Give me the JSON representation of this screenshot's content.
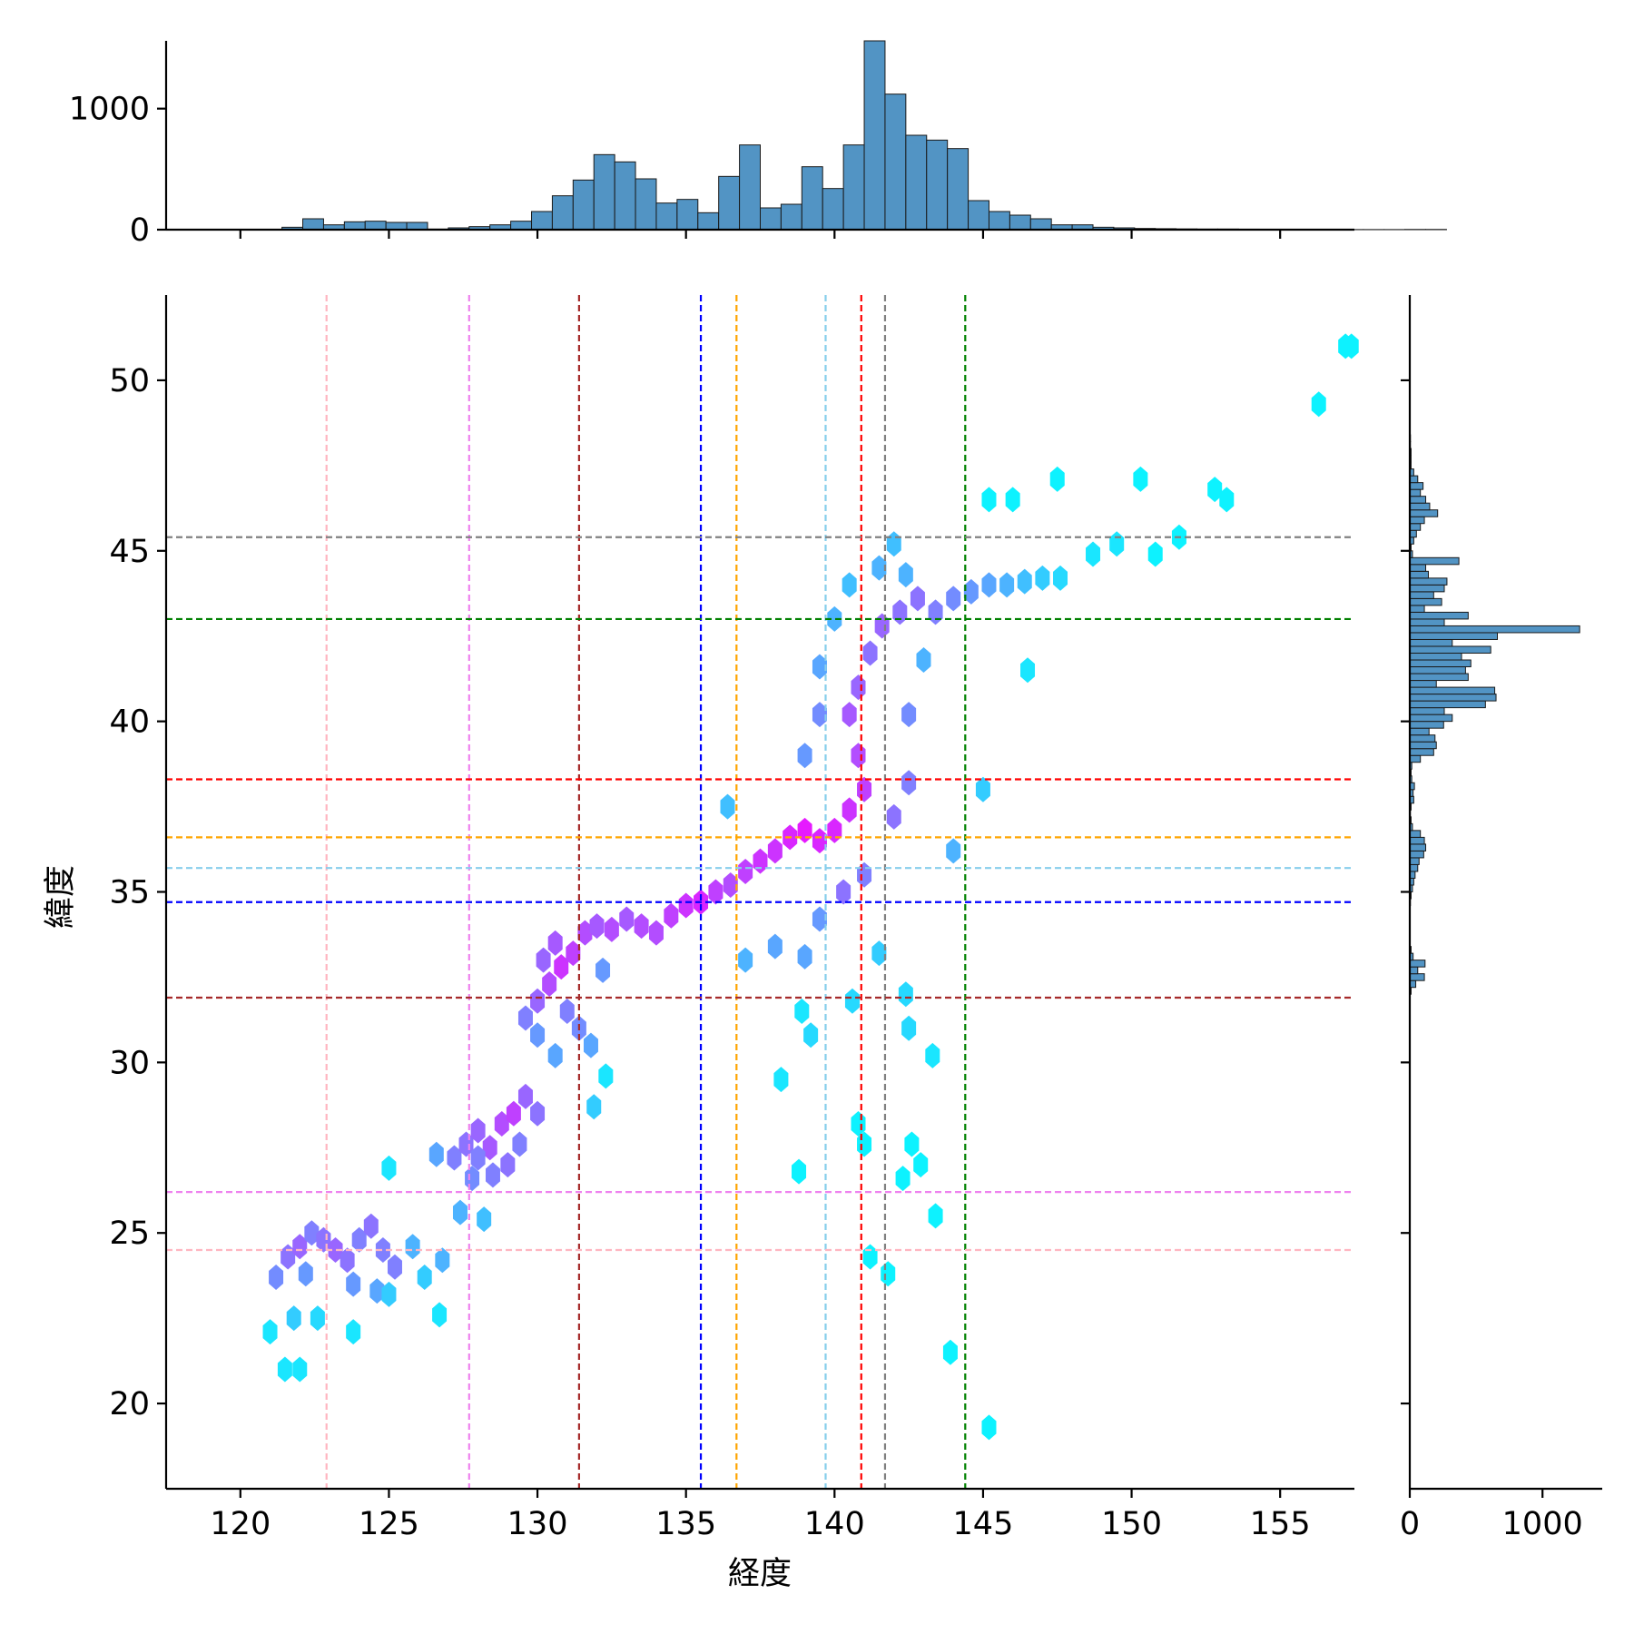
{
  "chart_data": {
    "type": "hexbin_joint",
    "xlabel": "経度",
    "ylabel": "緯度",
    "xlim": [
      117.5,
      157.5
    ],
    "ylim": [
      17.5,
      52.5
    ],
    "x_ticks": [
      120,
      125,
      130,
      135,
      140,
      145,
      150,
      155
    ],
    "y_ticks": [
      20,
      25,
      30,
      35,
      40,
      45,
      50
    ],
    "top_hist": {
      "ticks": [
        0,
        1000
      ],
      "ylim": [
        0,
        1560
      ],
      "bin_start": 120.0,
      "bin_width": 0.7,
      "counts": [
        0,
        0,
        20,
        90,
        40,
        65,
        70,
        60,
        60,
        5,
        15,
        25,
        40,
        70,
        150,
        280,
        410,
        620,
        560,
        420,
        220,
        250,
        140,
        440,
        700,
        180,
        210,
        520,
        340,
        700,
        1560,
        1120,
        780,
        740,
        670,
        240,
        150,
        120,
        90,
        40,
        40,
        20,
        15,
        10,
        8,
        6,
        5,
        5,
        4,
        3,
        2,
        3,
        2,
        1,
        1,
        1,
        2,
        2
      ]
    },
    "right_hist": {
      "ticks": [
        0,
        1000
      ],
      "xlim": [
        0,
        1450
      ],
      "bin_start": 20.0,
      "bin_width": 0.2,
      "counts": [
        0,
        0,
        0,
        0,
        0,
        0,
        0,
        0,
        0,
        0,
        0,
        0,
        0,
        0,
        0,
        0,
        0,
        0,
        0,
        0,
        0,
        0,
        0,
        0,
        0,
        0,
        0,
        0,
        0,
        0,
        0,
        0,
        0,
        0,
        0,
        0,
        0,
        0,
        0,
        0,
        0,
        0,
        0,
        0,
        0,
        0,
        0,
        0,
        0,
        0,
        0,
        0,
        0,
        0,
        0,
        0,
        0,
        0,
        0,
        0,
        10,
        45,
        110,
        60,
        115,
        25,
        10,
        0,
        0,
        0,
        0,
        0,
        0,
        5,
        10,
        20,
        30,
        40,
        60,
        70,
        105,
        120,
        110,
        80,
        20,
        10,
        5,
        10,
        30,
        25,
        35,
        15,
        10,
        15,
        80,
        180,
        200,
        190,
        145,
        255,
        320,
        260,
        570,
        650,
        640,
        200,
        440,
        420,
        460,
        390,
        610,
        320,
        660,
        1280,
        260,
        440,
        110,
        240,
        180,
        260,
        280,
        140,
        120,
        370,
        20,
        10,
        30,
        50,
        80,
        110,
        210,
        150,
        120,
        80,
        100,
        60,
        30,
        10,
        10,
        10,
        5,
        5
      ]
    },
    "hexbins": {
      "gridsize_note": "hex centers in data units with intensity 0-1",
      "points": [
        [
          121.2,
          23.7,
          0.45
        ],
        [
          121.6,
          24.3,
          0.55
        ],
        [
          122.0,
          24.6,
          0.6
        ],
        [
          122.4,
          25.0,
          0.5
        ],
        [
          122.8,
          24.8,
          0.55
        ],
        [
          123.2,
          24.5,
          0.6
        ],
        [
          123.6,
          24.2,
          0.55
        ],
        [
          124.0,
          24.8,
          0.5
        ],
        [
          124.4,
          25.2,
          0.55
        ],
        [
          124.8,
          24.5,
          0.5
        ],
        [
          125.2,
          24.0,
          0.5
        ],
        [
          123.8,
          23.5,
          0.4
        ],
        [
          124.6,
          23.3,
          0.35
        ],
        [
          122.2,
          23.8,
          0.4
        ],
        [
          121.8,
          22.5,
          0.2
        ],
        [
          122.6,
          22.5,
          0.15
        ],
        [
          121.0,
          22.1,
          0.1
        ],
        [
          121.5,
          21.0,
          0.1
        ],
        [
          122.0,
          21.0,
          0.1
        ],
        [
          123.8,
          22.1,
          0.1
        ],
        [
          125.0,
          23.2,
          0.2
        ],
        [
          125.8,
          24.6,
          0.3
        ],
        [
          125.0,
          26.9,
          0.1
        ],
        [
          126.7,
          22.6,
          0.1
        ],
        [
          126.2,
          23.7,
          0.2
        ],
        [
          126.8,
          24.2,
          0.3
        ],
        [
          127.2,
          27.2,
          0.5
        ],
        [
          127.6,
          27.6,
          0.55
        ],
        [
          128.0,
          28.0,
          0.6
        ],
        [
          128.4,
          27.5,
          0.65
        ],
        [
          128.8,
          28.2,
          0.7
        ],
        [
          129.2,
          28.5,
          0.75
        ],
        [
          129.6,
          29.0,
          0.6
        ],
        [
          127.8,
          26.6,
          0.45
        ],
        [
          128.5,
          26.7,
          0.5
        ],
        [
          129.0,
          27.0,
          0.55
        ],
        [
          129.4,
          27.6,
          0.5
        ],
        [
          130.0,
          28.5,
          0.55
        ],
        [
          129.6,
          31.3,
          0.5
        ],
        [
          130.0,
          31.8,
          0.6
        ],
        [
          130.4,
          32.3,
          0.7
        ],
        [
          130.8,
          32.8,
          0.8
        ],
        [
          131.2,
          33.2,
          0.75
        ],
        [
          131.6,
          33.8,
          0.7
        ],
        [
          130.6,
          33.5,
          0.65
        ],
        [
          130.2,
          33.0,
          0.6
        ],
        [
          131.0,
          31.5,
          0.5
        ],
        [
          131.4,
          31.0,
          0.45
        ],
        [
          131.8,
          30.5,
          0.35
        ],
        [
          130.6,
          30.2,
          0.35
        ],
        [
          130.0,
          30.8,
          0.4
        ],
        [
          132.0,
          34.0,
          0.65
        ],
        [
          132.5,
          33.9,
          0.7
        ],
        [
          133.0,
          34.2,
          0.65
        ],
        [
          133.5,
          34.0,
          0.7
        ],
        [
          134.0,
          33.8,
          0.7
        ],
        [
          134.5,
          34.3,
          0.75
        ],
        [
          135.0,
          34.6,
          0.8
        ],
        [
          135.5,
          34.7,
          0.85
        ],
        [
          136.0,
          35.0,
          0.75
        ],
        [
          136.5,
          35.2,
          0.7
        ],
        [
          137.0,
          35.6,
          0.75
        ],
        [
          137.5,
          35.9,
          0.8
        ],
        [
          138.0,
          36.2,
          0.8
        ],
        [
          138.5,
          36.6,
          0.85
        ],
        [
          139.0,
          36.8,
          0.9
        ],
        [
          139.5,
          36.5,
          0.85
        ],
        [
          140.0,
          36.8,
          0.85
        ],
        [
          140.5,
          37.4,
          0.8
        ],
        [
          141.0,
          38.0,
          0.75
        ],
        [
          140.8,
          39.0,
          0.7
        ],
        [
          140.5,
          40.2,
          0.65
        ],
        [
          140.8,
          41.0,
          0.6
        ],
        [
          141.2,
          42.0,
          0.55
        ],
        [
          141.6,
          42.8,
          0.6
        ],
        [
          142.2,
          43.2,
          0.55
        ],
        [
          142.8,
          43.6,
          0.55
        ],
        [
          143.4,
          43.2,
          0.5
        ],
        [
          144.0,
          43.6,
          0.45
        ],
        [
          144.6,
          43.8,
          0.4
        ],
        [
          145.2,
          44.0,
          0.35
        ],
        [
          145.8,
          44.0,
          0.3
        ],
        [
          146.4,
          44.1,
          0.25
        ],
        [
          147.0,
          44.2,
          0.2
        ],
        [
          147.6,
          44.2,
          0.15
        ],
        [
          139.0,
          39.0,
          0.4
        ],
        [
          139.5,
          40.2,
          0.45
        ],
        [
          139.5,
          41.6,
          0.35
        ],
        [
          140.0,
          43.0,
          0.3
        ],
        [
          140.5,
          44.0,
          0.25
        ],
        [
          141.5,
          44.5,
          0.3
        ],
        [
          142.0,
          45.2,
          0.25
        ],
        [
          142.4,
          44.3,
          0.3
        ],
        [
          143.0,
          41.8,
          0.3
        ],
        [
          142.5,
          40.2,
          0.45
        ],
        [
          142.5,
          38.2,
          0.5
        ],
        [
          142.0,
          37.2,
          0.55
        ],
        [
          141.0,
          35.5,
          0.5
        ],
        [
          140.3,
          35.0,
          0.55
        ],
        [
          139.5,
          34.2,
          0.4
        ],
        [
          139.0,
          33.1,
          0.35
        ],
        [
          138.0,
          33.4,
          0.35
        ],
        [
          137.0,
          33.0,
          0.3
        ],
        [
          136.4,
          37.5,
          0.25
        ],
        [
          139.2,
          30.8,
          0.15
        ],
        [
          138.2,
          29.5,
          0.1
        ],
        [
          141.5,
          33.2,
          0.2
        ],
        [
          142.5,
          31.0,
          0.15
        ],
        [
          143.3,
          30.2,
          0.1
        ],
        [
          144.0,
          36.2,
          0.3
        ],
        [
          145.0,
          38.0,
          0.2
        ],
        [
          146.5,
          41.5,
          0.1
        ],
        [
          146.0,
          46.5,
          0.05
        ],
        [
          145.2,
          46.5,
          0.05
        ],
        [
          147.5,
          47.1,
          0.05
        ],
        [
          150.3,
          47.1,
          0.05
        ],
        [
          152.8,
          46.8,
          0.05
        ],
        [
          153.2,
          46.5,
          0.05
        ],
        [
          148.7,
          44.9,
          0.1
        ],
        [
          149.5,
          45.2,
          0.1
        ],
        [
          150.8,
          44.9,
          0.05
        ],
        [
          151.6,
          45.4,
          0.05
        ],
        [
          156.3,
          49.3,
          0.05
        ],
        [
          157.2,
          51.0,
          0.05
        ],
        [
          157.4,
          51.0,
          0.05
        ],
        [
          138.8,
          26.8,
          0.05
        ],
        [
          140.8,
          28.2,
          0.05
        ],
        [
          141.0,
          27.6,
          0.05
        ],
        [
          142.6,
          27.6,
          0.05
        ],
        [
          142.9,
          27.0,
          0.05
        ],
        [
          142.3,
          26.6,
          0.05
        ],
        [
          143.4,
          25.5,
          0.05
        ],
        [
          141.2,
          24.3,
          0.05
        ],
        [
          141.8,
          23.8,
          0.05
        ],
        [
          143.9,
          21.5,
          0.05
        ],
        [
          145.2,
          19.3,
          0.05
        ],
        [
          138.9,
          31.5,
          0.1
        ],
        [
          140.6,
          31.8,
          0.15
        ],
        [
          142.4,
          32.0,
          0.15
        ],
        [
          128.0,
          27.2,
          0.5
        ],
        [
          126.6,
          27.3,
          0.35
        ],
        [
          127.4,
          25.6,
          0.3
        ],
        [
          128.2,
          25.4,
          0.25
        ],
        [
          131.9,
          28.7,
          0.2
        ],
        [
          132.3,
          29.6,
          0.1
        ],
        [
          132.2,
          32.7,
          0.4
        ]
      ]
    },
    "vlines": [
      {
        "x": 122.9,
        "color": "#ffb6c1"
      },
      {
        "x": 127.7,
        "color": "#ee82ee"
      },
      {
        "x": 131.4,
        "color": "#a52a2a"
      },
      {
        "x": 135.5,
        "color": "#0000ff"
      },
      {
        "x": 136.7,
        "color": "#ffa500"
      },
      {
        "x": 139.7,
        "color": "#87ceeb"
      },
      {
        "x": 140.9,
        "color": "#ff0000"
      },
      {
        "x": 141.7,
        "color": "#808080"
      },
      {
        "x": 144.4,
        "color": "#008000"
      }
    ],
    "hlines": [
      {
        "y": 45.4,
        "color": "#808080"
      },
      {
        "y": 43.0,
        "color": "#008000"
      },
      {
        "y": 38.3,
        "color": "#ff0000"
      },
      {
        "y": 36.6,
        "color": "#ffa500"
      },
      {
        "y": 35.7,
        "color": "#87ceeb"
      },
      {
        "y": 34.7,
        "color": "#0000ff"
      },
      {
        "y": 31.9,
        "color": "#a52a2a"
      },
      {
        "y": 26.2,
        "color": "#ee82ee"
      },
      {
        "y": 24.5,
        "color": "#ffb6c1"
      }
    ],
    "colors": {
      "hist_fill": "#5294c4",
      "hist_edge": "#1a1a1a",
      "cmap_low": "#00ffff",
      "cmap_high": "#ff00ff"
    }
  }
}
